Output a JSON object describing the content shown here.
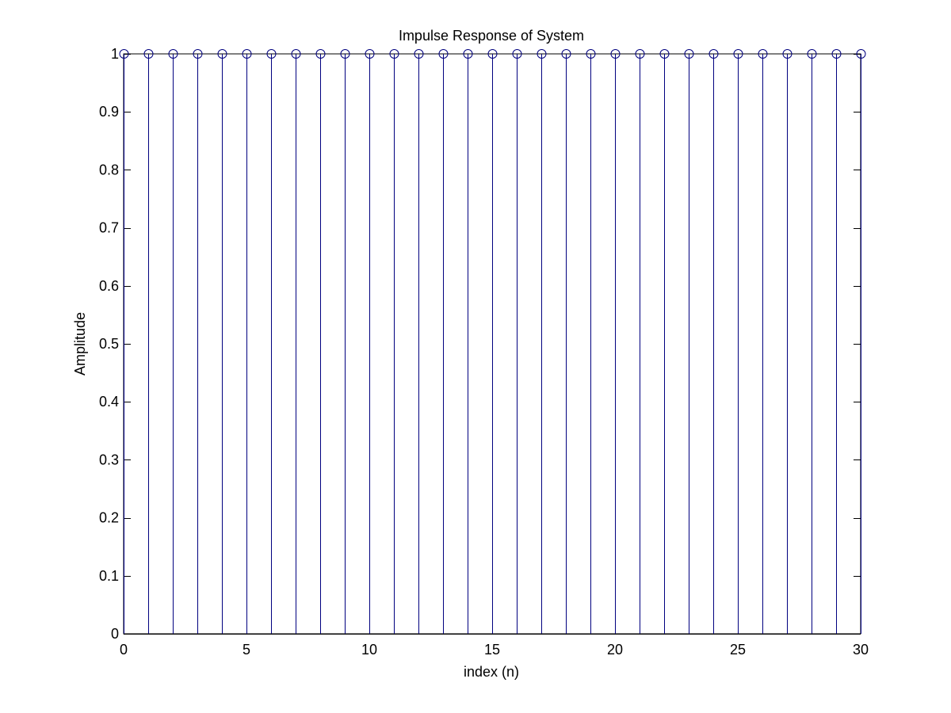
{
  "chart_data": {
    "type": "stem",
    "title": "Impulse Response of System",
    "xlabel": "index (n)",
    "ylabel": "Amplitude",
    "xlim": [
      0,
      30
    ],
    "ylim": [
      0,
      1
    ],
    "xticks": [
      0,
      5,
      10,
      15,
      20,
      25,
      30
    ],
    "xtick_labels": [
      "0",
      "5",
      "10",
      "15",
      "20",
      "25",
      "30"
    ],
    "yticks": [
      0,
      0.1,
      0.2,
      0.3,
      0.4,
      0.5,
      0.6,
      0.7,
      0.8,
      0.9,
      1
    ],
    "ytick_labels": [
      "0",
      "0.1",
      "0.2",
      "0.3",
      "0.4",
      "0.5",
      "0.6",
      "0.7",
      "0.8",
      "0.9",
      "1"
    ],
    "grid": false,
    "x": [
      0,
      1,
      2,
      3,
      4,
      5,
      6,
      7,
      8,
      9,
      10,
      11,
      12,
      13,
      14,
      15,
      16,
      17,
      18,
      19,
      20,
      21,
      22,
      23,
      24,
      25,
      26,
      27,
      28,
      29,
      30
    ],
    "y": [
      1,
      1,
      1,
      1,
      1,
      1,
      1,
      1,
      1,
      1,
      1,
      1,
      1,
      1,
      1,
      1,
      1,
      1,
      1,
      1,
      1,
      1,
      1,
      1,
      1,
      1,
      1,
      1,
      1,
      1,
      1
    ],
    "marker": "circle",
    "color": "#00007f",
    "baseline_color": "#000000"
  }
}
